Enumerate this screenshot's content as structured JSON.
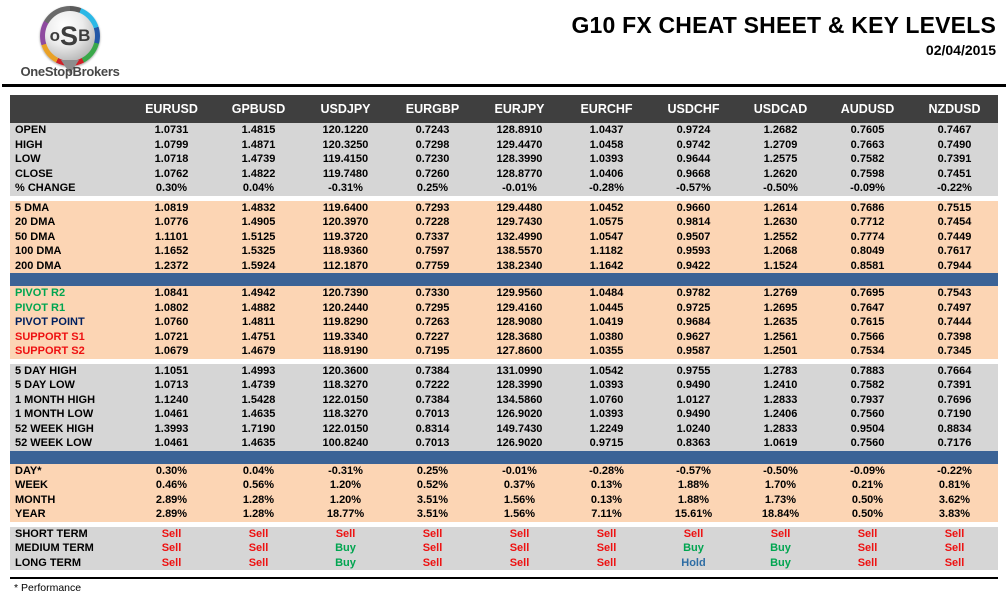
{
  "header": {
    "title": "G10 FX CHEAT SHEET & KEY LEVELS",
    "date": "02/04/2015",
    "logo": {
      "monogram_o": "o",
      "monogram_s": "S",
      "monogram_b": "B",
      "brand": "OneStopBrokers"
    }
  },
  "footnote": "* Performance",
  "colors": {
    "header_bg": "#3f3f3f",
    "gray_row": "#d6d6d6",
    "peach_row": "#fcd5b4",
    "blue_bar": "#3b6396",
    "sell": "#ee1111",
    "buy": "#00a550",
    "hold": "#2e6da4",
    "pivot_resistance": "#00a550",
    "pivot_point": "#002060",
    "support": "#ee1111"
  },
  "table": {
    "columns": [
      "EURUSD",
      "GPBUSD",
      "USDJPY",
      "EURGBP",
      "EURJPY",
      "EURCHF",
      "USDCHF",
      "USDCAD",
      "AUDUSD",
      "NZDUSD"
    ],
    "sections": [
      {
        "name": "ohlc",
        "bg": "gray",
        "separator_before": "none",
        "rows": [
          {
            "label": "OPEN",
            "values": [
              "1.0731",
              "1.4815",
              "120.1220",
              "0.7243",
              "128.8910",
              "1.0437",
              "0.9724",
              "1.2682",
              "0.7605",
              "0.7467"
            ]
          },
          {
            "label": "HIGH",
            "values": [
              "1.0799",
              "1.4871",
              "120.3250",
              "0.7298",
              "129.4470",
              "1.0458",
              "0.9742",
              "1.2709",
              "0.7663",
              "0.7490"
            ]
          },
          {
            "label": "LOW",
            "values": [
              "1.0718",
              "1.4739",
              "119.4150",
              "0.7230",
              "128.3990",
              "1.0393",
              "0.9644",
              "1.2575",
              "0.7582",
              "0.7391"
            ]
          },
          {
            "label": "CLOSE",
            "values": [
              "1.0762",
              "1.4822",
              "119.7480",
              "0.7260",
              "128.8770",
              "1.0406",
              "0.9668",
              "1.2620",
              "0.7598",
              "0.7451"
            ]
          },
          {
            "label": "% CHANGE",
            "values": [
              "0.30%",
              "0.04%",
              "-0.31%",
              "0.25%",
              "-0.01%",
              "-0.28%",
              "-0.57%",
              "-0.50%",
              "-0.09%",
              "-0.22%"
            ]
          }
        ]
      },
      {
        "name": "moving-averages",
        "bg": "peach",
        "separator_before": "gap",
        "rows": [
          {
            "label": "5 DMA",
            "values": [
              "1.0819",
              "1.4832",
              "119.6400",
              "0.7293",
              "129.4480",
              "1.0452",
              "0.9660",
              "1.2614",
              "0.7686",
              "0.7515"
            ]
          },
          {
            "label": "20 DMA",
            "values": [
              "1.0776",
              "1.4905",
              "120.3970",
              "0.7228",
              "129.7430",
              "1.0575",
              "0.9814",
              "1.2630",
              "0.7712",
              "0.7454"
            ]
          },
          {
            "label": "50 DMA",
            "values": [
              "1.1101",
              "1.5125",
              "119.3720",
              "0.7337",
              "132.4990",
              "1.0547",
              "0.9507",
              "1.2552",
              "0.7774",
              "0.7449"
            ]
          },
          {
            "label": "100 DMA",
            "values": [
              "1.1652",
              "1.5325",
              "118.9360",
              "0.7597",
              "138.5570",
              "1.1182",
              "0.9593",
              "1.2068",
              "0.8049",
              "0.7617"
            ]
          },
          {
            "label": "200 DMA",
            "values": [
              "1.2372",
              "1.5924",
              "112.1870",
              "0.7759",
              "138.2340",
              "1.1642",
              "0.9422",
              "1.1524",
              "0.8581",
              "0.7944"
            ]
          }
        ]
      },
      {
        "name": "pivots",
        "bg": "peach",
        "separator_before": "blue",
        "rows": [
          {
            "label": "PIVOT R2",
            "label_color": "pivot_resistance",
            "values": [
              "1.0841",
              "1.4942",
              "120.7390",
              "0.7330",
              "129.9560",
              "1.0484",
              "0.9782",
              "1.2769",
              "0.7695",
              "0.7543"
            ]
          },
          {
            "label": "PIVOT R1",
            "label_color": "pivot_resistance",
            "values": [
              "1.0802",
              "1.4882",
              "120.2440",
              "0.7295",
              "129.4160",
              "1.0445",
              "0.9725",
              "1.2695",
              "0.7647",
              "0.7497"
            ]
          },
          {
            "label": "PIVOT POINT",
            "label_color": "pivot_point",
            "values": [
              "1.0760",
              "1.4811",
              "119.8290",
              "0.7263",
              "128.9080",
              "1.0419",
              "0.9684",
              "1.2635",
              "0.7615",
              "0.7444"
            ]
          },
          {
            "label": "SUPPORT S1",
            "label_color": "support",
            "values": [
              "1.0721",
              "1.4751",
              "119.3340",
              "0.7227",
              "128.3680",
              "1.0380",
              "0.9627",
              "1.2561",
              "0.7566",
              "0.7398"
            ]
          },
          {
            "label": "SUPPORT S2",
            "label_color": "support",
            "values": [
              "1.0679",
              "1.4679",
              "118.9190",
              "0.7195",
              "127.8600",
              "1.0355",
              "0.9587",
              "1.2501",
              "0.7534",
              "0.7345"
            ]
          }
        ]
      },
      {
        "name": "ranges",
        "bg": "gray",
        "separator_before": "gap",
        "rows": [
          {
            "label": "5 DAY HIGH",
            "values": [
              "1.1051",
              "1.4993",
              "120.3600",
              "0.7384",
              "131.0990",
              "1.0542",
              "0.9755",
              "1.2783",
              "0.7883",
              "0.7664"
            ]
          },
          {
            "label": "5 DAY LOW",
            "values": [
              "1.0713",
              "1.4739",
              "118.3270",
              "0.7222",
              "128.3990",
              "1.0393",
              "0.9490",
              "1.2410",
              "0.7582",
              "0.7391"
            ]
          },
          {
            "label": "1 MONTH HIGH",
            "values": [
              "1.1240",
              "1.5428",
              "122.0150",
              "0.7384",
              "134.5860",
              "1.0760",
              "1.0127",
              "1.2833",
              "0.7937",
              "0.7696"
            ]
          },
          {
            "label": "1 MONTH LOW",
            "values": [
              "1.0461",
              "1.4635",
              "118.3270",
              "0.7013",
              "126.9020",
              "1.0393",
              "0.9490",
              "1.2406",
              "0.7560",
              "0.7190"
            ]
          },
          {
            "label": "52 WEEK HIGH",
            "values": [
              "1.3993",
              "1.7190",
              "122.0150",
              "0.8314",
              "149.7430",
              "1.2249",
              "1.0240",
              "1.2833",
              "0.9504",
              "0.8834"
            ]
          },
          {
            "label": "52 WEEK LOW",
            "values": [
              "1.0461",
              "1.4635",
              "100.8240",
              "0.7013",
              "126.9020",
              "0.9715",
              "0.8363",
              "1.0619",
              "0.7560",
              "0.7176"
            ]
          }
        ]
      },
      {
        "name": "performance",
        "bg": "peach",
        "separator_before": "blue",
        "rows": [
          {
            "label": "DAY*",
            "values": [
              "0.30%",
              "0.04%",
              "-0.31%",
              "0.25%",
              "-0.01%",
              "-0.28%",
              "-0.57%",
              "-0.50%",
              "-0.09%",
              "-0.22%"
            ]
          },
          {
            "label": "WEEK",
            "values": [
              "0.46%",
              "0.56%",
              "1.20%",
              "0.52%",
              "0.37%",
              "0.13%",
              "1.88%",
              "1.70%",
              "0.21%",
              "0.81%"
            ]
          },
          {
            "label": "MONTH",
            "values": [
              "2.89%",
              "1.28%",
              "1.20%",
              "3.51%",
              "1.56%",
              "0.13%",
              "1.88%",
              "1.73%",
              "0.50%",
              "3.62%"
            ]
          },
          {
            "label": "YEAR",
            "values": [
              "2.89%",
              "1.28%",
              "18.77%",
              "3.51%",
              "1.56%",
              "7.11%",
              "15.61%",
              "18.84%",
              "0.50%",
              "3.83%"
            ]
          }
        ]
      },
      {
        "name": "signals",
        "bg": "gray",
        "separator_before": "gap",
        "value_type": "signal",
        "rows": [
          {
            "label": "SHORT TERM",
            "values": [
              "Sell",
              "Sell",
              "Sell",
              "Sell",
              "Sell",
              "Sell",
              "Sell",
              "Sell",
              "Sell",
              "Sell"
            ]
          },
          {
            "label": "MEDIUM TERM",
            "values": [
              "Sell",
              "Sell",
              "Buy",
              "Sell",
              "Sell",
              "Sell",
              "Buy",
              "Buy",
              "Sell",
              "Sell"
            ]
          },
          {
            "label": "LONG TERM",
            "values": [
              "Sell",
              "Sell",
              "Buy",
              "Sell",
              "Sell",
              "Sell",
              "Hold",
              "Buy",
              "Sell",
              "Sell"
            ]
          }
        ]
      }
    ]
  }
}
